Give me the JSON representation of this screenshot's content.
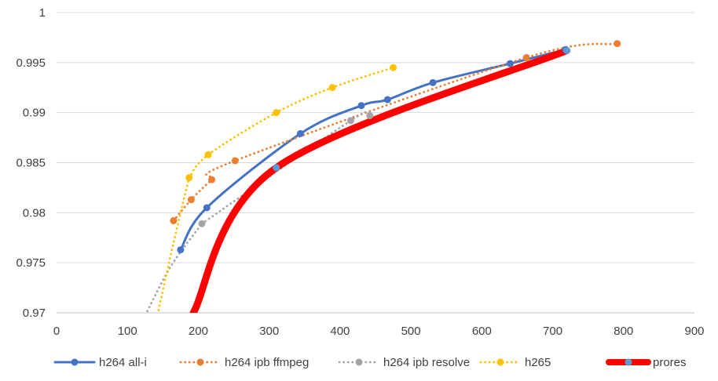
{
  "chart_data": {
    "type": "line",
    "title": "",
    "xlabel": "",
    "ylabel": "",
    "xlim": [
      0,
      900
    ],
    "ylim": [
      0.97,
      1.0
    ],
    "x_ticks": [
      "0",
      "100",
      "200",
      "300",
      "400",
      "500",
      "600",
      "700",
      "800",
      "900"
    ],
    "y_ticks": [
      "0.97",
      "0.975",
      "0.98",
      "0.985",
      "0.99",
      "0.995",
      "1"
    ],
    "grid": "horizontal",
    "legend_position": "bottom",
    "series": [
      {
        "name": "h264 all-i",
        "color": "#4472C4",
        "line_style": "solid",
        "points": [
          [
            175,
            0.9763
          ],
          [
            212,
            0.9805
          ],
          [
            344,
            0.9879
          ],
          [
            430,
            0.9907
          ],
          [
            467,
            0.9913
          ],
          [
            531,
            0.993
          ],
          [
            640,
            0.9949
          ],
          [
            718,
            0.9963
          ]
        ]
      },
      {
        "name": "h264 ipb ffmpeg",
        "color": "#ED7D31",
        "line_style": "dotted",
        "points": [
          [
            165,
            0.9792
          ],
          [
            190,
            0.9813
          ],
          [
            219,
            0.9833
          ],
          [
            252,
            0.9852
          ],
          [
            663,
            0.9955
          ],
          [
            791,
            0.9969
          ]
        ]
      },
      {
        "name": "h264 ipb resolve",
        "color": "#A5A5A5",
        "line_style": "dotted",
        "points": [
          [
            205,
            0.9789
          ],
          [
            415,
            0.9892
          ],
          [
            442,
            0.9897
          ]
        ]
      },
      {
        "name": "h265",
        "color": "#FFC000",
        "line_style": "dotted",
        "points": [
          [
            187,
            0.9835
          ],
          [
            214,
            0.9858
          ],
          [
            310,
            0.99
          ],
          [
            389,
            0.9925
          ],
          [
            475,
            0.9945
          ]
        ]
      },
      {
        "name": "prores",
        "color": "#FF0000",
        "line_style": "thick",
        "points": [
          [
            193,
            0.97
          ],
          [
            310,
            0.9845
          ],
          [
            720,
            0.9962
          ]
        ]
      }
    ]
  }
}
